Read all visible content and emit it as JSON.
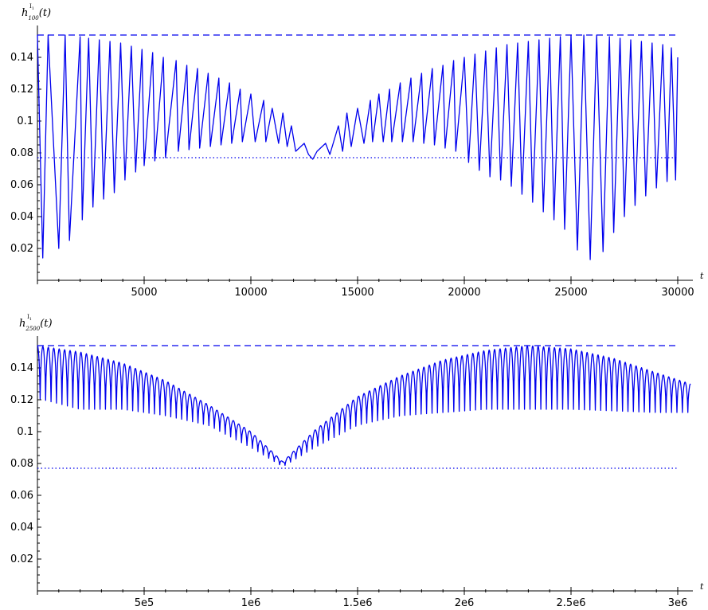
{
  "colors": {
    "series": "#0000ee",
    "axis": "#000000",
    "background": "#ffffff"
  },
  "chart_data": [
    {
      "type": "line",
      "ylabel": {
        "base": "h",
        "sup": "I",
        "sup_sub": "1",
        "sub": "100",
        "arg": "(t)"
      },
      "xlabel": "t",
      "xlim": [
        0,
        30000
      ],
      "ylim": [
        0,
        0.155
      ],
      "xticks": [
        5000,
        10000,
        15000,
        20000,
        25000,
        30000
      ],
      "xtick_labels": [
        "5000",
        "10000",
        "15000",
        "20000",
        "25000",
        "30000"
      ],
      "yticks": [
        0.02,
        0.04,
        0.06,
        0.08,
        0.1,
        0.12,
        0.14
      ],
      "ytick_labels": [
        "0.02",
        "0.04",
        "0.06",
        "0.08",
        "0.1",
        "0.12",
        "0.14"
      ],
      "grid": false,
      "reference_lines": [
        {
          "style": "dashed",
          "y": 0.154
        },
        {
          "style": "dotted",
          "y": 0.077
        }
      ],
      "series": [
        {
          "style": "solid oscillating curve",
          "x_range": [
            0,
            30000
          ],
          "points": [
            [
              0,
              0.154
            ],
            [
              250,
              0.014
            ],
            [
              500,
              0.154
            ],
            [
              1000,
              0.02
            ],
            [
              1300,
              0.154
            ],
            [
              1500,
              0.025
            ],
            [
              2000,
              0.153
            ],
            [
              2100,
              0.038
            ],
            [
              2400,
              0.152
            ],
            [
              2600,
              0.046
            ],
            [
              2900,
              0.151
            ],
            [
              3100,
              0.051
            ],
            [
              3400,
              0.15
            ],
            [
              3600,
              0.055
            ],
            [
              3900,
              0.149
            ],
            [
              4100,
              0.063
            ],
            [
              4400,
              0.147
            ],
            [
              4600,
              0.068
            ],
            [
              4900,
              0.145
            ],
            [
              5000,
              0.072
            ],
            [
              5400,
              0.143
            ],
            [
              5500,
              0.075
            ],
            [
              5900,
              0.14
            ],
            [
              6000,
              0.077
            ],
            [
              6500,
              0.138
            ],
            [
              6600,
              0.081
            ],
            [
              7000,
              0.135
            ],
            [
              7100,
              0.082
            ],
            [
              7500,
              0.133
            ],
            [
              7600,
              0.083
            ],
            [
              8000,
              0.13
            ],
            [
              8100,
              0.084
            ],
            [
              8500,
              0.127
            ],
            [
              8600,
              0.085
            ],
            [
              9000,
              0.124
            ],
            [
              9100,
              0.086
            ],
            [
              9500,
              0.12
            ],
            [
              9600,
              0.087
            ],
            [
              10000,
              0.117
            ],
            [
              10200,
              0.087
            ],
            [
              10600,
              0.113
            ],
            [
              10700,
              0.087
            ],
            [
              11000,
              0.108
            ],
            [
              11300,
              0.086
            ],
            [
              11500,
              0.105
            ],
            [
              11700,
              0.084
            ],
            [
              11900,
              0.097
            ],
            [
              12100,
              0.081
            ],
            [
              12500,
              0.086
            ],
            [
              12700,
              0.079
            ],
            [
              12900,
              0.076
            ],
            [
              13100,
              0.081
            ],
            [
              13500,
              0.086
            ],
            [
              13700,
              0.079
            ],
            [
              14100,
              0.097
            ],
            [
              14300,
              0.081
            ],
            [
              14500,
              0.105
            ],
            [
              14700,
              0.084
            ],
            [
              15000,
              0.108
            ],
            [
              15300,
              0.086
            ],
            [
              15600,
              0.113
            ],
            [
              15700,
              0.087
            ],
            [
              16000,
              0.117
            ],
            [
              16200,
              0.087
            ],
            [
              16500,
              0.12
            ],
            [
              16600,
              0.087
            ],
            [
              17000,
              0.124
            ],
            [
              17100,
              0.087
            ],
            [
              17500,
              0.127
            ],
            [
              17600,
              0.087
            ],
            [
              18000,
              0.13
            ],
            [
              18100,
              0.086
            ],
            [
              18500,
              0.133
            ],
            [
              18600,
              0.085
            ],
            [
              19000,
              0.135
            ],
            [
              19100,
              0.083
            ],
            [
              19500,
              0.138
            ],
            [
              19600,
              0.081
            ],
            [
              20000,
              0.14
            ],
            [
              20200,
              0.074
            ],
            [
              20500,
              0.142
            ],
            [
              20700,
              0.069
            ],
            [
              21000,
              0.144
            ],
            [
              21200,
              0.065
            ],
            [
              21500,
              0.146
            ],
            [
              21700,
              0.063
            ],
            [
              22000,
              0.148
            ],
            [
              22200,
              0.059
            ],
            [
              22500,
              0.149
            ],
            [
              22700,
              0.054
            ],
            [
              23000,
              0.15
            ],
            [
              23200,
              0.049
            ],
            [
              23500,
              0.151
            ],
            [
              23700,
              0.043
            ],
            [
              24000,
              0.152
            ],
            [
              24200,
              0.038
            ],
            [
              24500,
              0.153
            ],
            [
              24700,
              0.032
            ],
            [
              25000,
              0.154
            ],
            [
              25300,
              0.019
            ],
            [
              25600,
              0.154
            ],
            [
              25900,
              0.013
            ],
            [
              26200,
              0.154
            ],
            [
              26500,
              0.018
            ],
            [
              26800,
              0.153
            ],
            [
              27000,
              0.03
            ],
            [
              27300,
              0.152
            ],
            [
              27500,
              0.04
            ],
            [
              27800,
              0.151
            ],
            [
              28000,
              0.047
            ],
            [
              28300,
              0.15
            ],
            [
              28500,
              0.053
            ],
            [
              28800,
              0.149
            ],
            [
              29000,
              0.058
            ],
            [
              29300,
              0.148
            ],
            [
              29500,
              0.062
            ],
            [
              29700,
              0.146
            ],
            [
              29900,
              0.063
            ],
            [
              30000,
              0.14
            ]
          ]
        }
      ]
    },
    {
      "type": "line",
      "ylabel": {
        "base": "h",
        "sup": "I",
        "sup_sub": "1",
        "sub": "2500",
        "arg": "(t)"
      },
      "xlabel": "t",
      "xlim": [
        0,
        3060000
      ],
      "ylim": [
        0,
        0.155
      ],
      "xticks": [
        500000,
        1000000,
        1500000,
        2000000,
        2500000,
        3000000
      ],
      "xtick_labels": [
        "5e5",
        "1e6",
        "1.5e6",
        "2e6",
        "2.5e6",
        "3e6"
      ],
      "yticks": [
        0.02,
        0.04,
        0.06,
        0.08,
        0.1,
        0.12,
        0.14
      ],
      "ytick_labels": [
        "0.02",
        "0.04",
        "0.06",
        "0.08",
        "0.1",
        "0.12",
        "0.14"
      ],
      "grid": false,
      "reference_lines": [
        {
          "style": "dashed",
          "y": 0.154
        },
        {
          "style": "dotted",
          "y": 0.077
        }
      ],
      "series": [
        {
          "style": "solid oscillating curve",
          "x_range": [
            0,
            3060000
          ],
          "upper_envelope": [
            [
              0,
              0.154
            ],
            [
              200000,
              0.15
            ],
            [
              400000,
              0.143
            ],
            [
              600000,
              0.132
            ],
            [
              800000,
              0.117
            ],
            [
              1000000,
              0.1
            ],
            [
              1150000,
              0.081
            ],
            [
              1300000,
              0.101
            ],
            [
              1500000,
              0.122
            ],
            [
              1700000,
              0.135
            ],
            [
              1900000,
              0.145
            ],
            [
              2100000,
              0.151
            ],
            [
              2300000,
              0.154
            ],
            [
              2500000,
              0.152
            ],
            [
              2700000,
              0.146
            ],
            [
              2900000,
              0.137
            ],
            [
              3060000,
              0.13
            ]
          ],
          "lower_envelope": [
            [
              0,
              0.121
            ],
            [
              200000,
              0.114
            ],
            [
              400000,
              0.114
            ],
            [
              600000,
              0.11
            ],
            [
              800000,
              0.104
            ],
            [
              1000000,
              0.09
            ],
            [
              1150000,
              0.078
            ],
            [
              1300000,
              0.09
            ],
            [
              1500000,
              0.104
            ],
            [
              1700000,
              0.11
            ],
            [
              1900000,
              0.112
            ],
            [
              2100000,
              0.114
            ],
            [
              2300000,
              0.114
            ],
            [
              2500000,
              0.114
            ],
            [
              2700000,
              0.113
            ],
            [
              2900000,
              0.112
            ],
            [
              3060000,
              0.112
            ]
          ],
          "oscillations": 120
        }
      ]
    }
  ]
}
